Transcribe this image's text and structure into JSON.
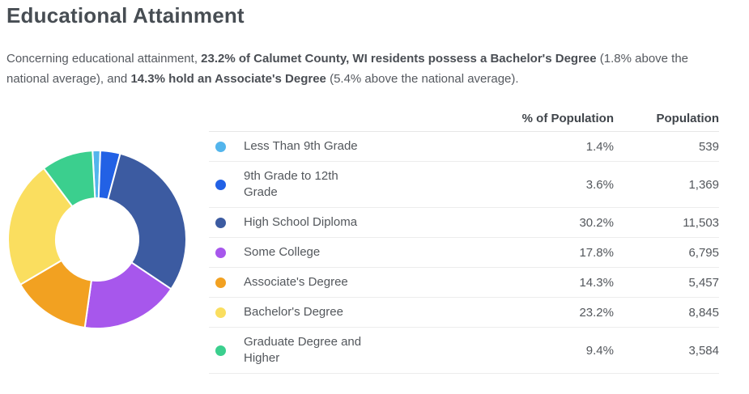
{
  "page": {
    "title": "Educational Attainment",
    "intro_segments": [
      {
        "text": "Concerning educational attainment, ",
        "bold": false
      },
      {
        "text": "23.2% of Calumet County, WI residents possess a Bachelor's Degree",
        "bold": true
      },
      {
        "text": " (1.8% above the",
        "bold": false
      },
      {
        "br": true
      },
      {
        "text": "national average), and ",
        "bold": false
      },
      {
        "text": "14.3% hold an Associate's Degree",
        "bold": true
      },
      {
        "text": " (5.4% above the national average).",
        "bold": false
      }
    ]
  },
  "table": {
    "columns": {
      "percent": "% of Population",
      "population": "Population"
    }
  },
  "chart_data": {
    "type": "pie",
    "subtype": "donut",
    "title": "Educational Attainment",
    "start_angle_deg": -3,
    "inner_radius_ratio": 0.46,
    "legend_position": "right-table",
    "categories": [
      "Less Than 9th Grade",
      "9th Grade to 12th Grade",
      "High School Diploma",
      "Some College",
      "Associate's Degree",
      "Bachelor's Degree",
      "Graduate Degree and Higher"
    ],
    "series": [
      {
        "name": "% of Population",
        "values": [
          1.4,
          3.6,
          30.2,
          17.8,
          14.3,
          23.2,
          9.4
        ]
      },
      {
        "name": "Population",
        "values": [
          539,
          1369,
          11503,
          6795,
          5457,
          8845,
          3584
        ]
      }
    ],
    "colors": [
      "#53b5ec",
      "#2261e5",
      "#3c5ba1",
      "#a757ec",
      "#f2a121",
      "#fade5f",
      "#3bcf8e"
    ],
    "rows": [
      {
        "label": "Less Than 9th Grade",
        "percent": "1.4%",
        "population": "539",
        "color": "#53b5ec"
      },
      {
        "label": "9th Grade to 12th Grade",
        "percent": "3.6%",
        "population": "1,369",
        "color": "#2261e5"
      },
      {
        "label": "High School Diploma",
        "percent": "30.2%",
        "population": "11,503",
        "color": "#3c5ba1"
      },
      {
        "label": "Some College",
        "percent": "17.8%",
        "population": "6,795",
        "color": "#a757ec"
      },
      {
        "label": "Associate's Degree",
        "percent": "14.3%",
        "population": "5,457",
        "color": "#f2a121"
      },
      {
        "label": "Bachelor's Degree",
        "percent": "23.2%",
        "population": "8,845",
        "color": "#fade5f"
      },
      {
        "label": "Graduate Degree and Higher",
        "percent": "9.4%",
        "population": "3,584",
        "color": "#3bcf8e"
      }
    ]
  }
}
